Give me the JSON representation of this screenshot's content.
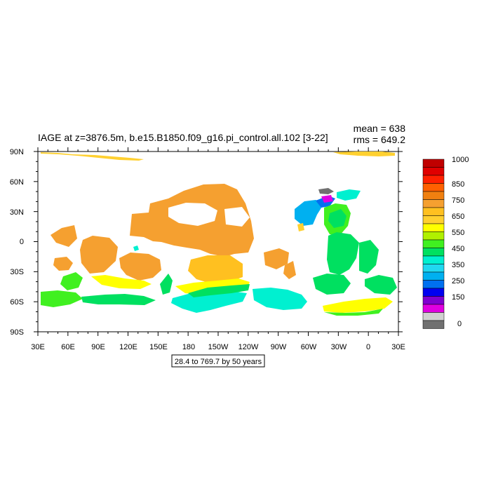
{
  "figure": {
    "title": "IAGE at z=3876.5m, b.e15.B1850.f09_g16.pi_control.all.102 [3-22]",
    "mean_label": "mean = 638",
    "rms_label": "rms = 649.2",
    "footer_label": "28.4 to 769.7 by 50 years"
  },
  "map": {
    "projection": "cylindrical equidistant",
    "center_longitude": "180",
    "background": "#ffffff",
    "lon_tick_labels": [
      "30E",
      "60E",
      "90E",
      "120E",
      "150E",
      "180",
      "150W",
      "120W",
      "90W",
      "60W",
      "30W",
      "0",
      "30E"
    ],
    "lat_tick_labels": [
      "90N",
      "60N",
      "30N",
      "0",
      "30S",
      "60S",
      "90S"
    ]
  },
  "colorbar": {
    "labels": [
      "1000",
      "850",
      "750",
      "650",
      "550",
      "450",
      "350",
      "250",
      "150",
      "0"
    ],
    "colors": [
      "#c00000",
      "#e00000",
      "#ff2000",
      "#ff6000",
      "#f08010",
      "#f5a030",
      "#ffc020",
      "#ffd030",
      "#ffff00",
      "#b0f000",
      "#40f020",
      "#00e060",
      "#00f0d0",
      "#20d8f0",
      "#00b0f0",
      "#0070f0",
      "#0000f0",
      "#8000d0",
      "#e000e0",
      "#d0d0d0",
      "#707070"
    ]
  },
  "colors": {
    "orange": "#f5a030",
    "dark_orange": "#f29a2e",
    "light_orange": "#ffc040",
    "yellow": "#ffff00",
    "green": "#00e060",
    "bright_green": "#40f020",
    "cyan": "#00f0d0",
    "light_blue": "#00b0f0",
    "blue": "#0070f0",
    "magenta": "#e000e0",
    "gray": "#707070"
  }
}
